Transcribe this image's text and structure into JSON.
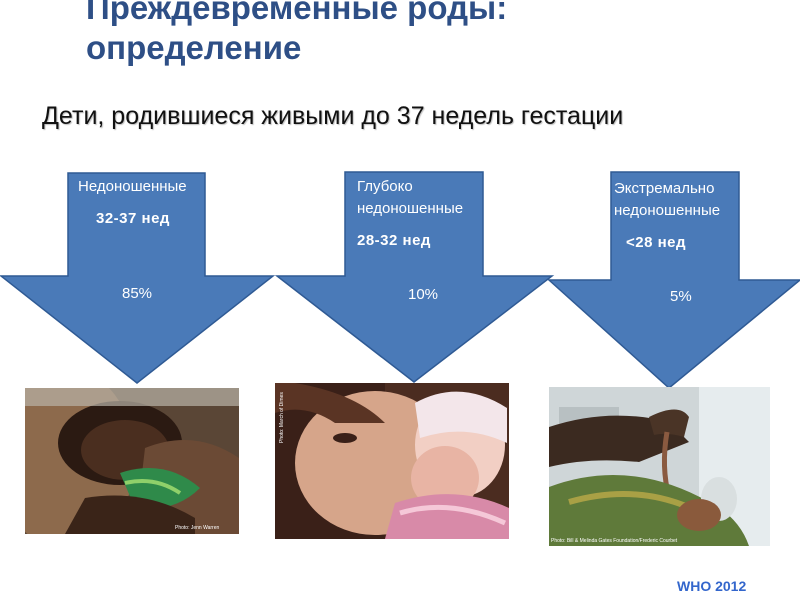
{
  "title": {
    "line1": "Преждевременные роды:",
    "line2": "определение"
  },
  "subtitle": "Дети, родившиеся живыми до 37 недель гестации",
  "colors": {
    "title": "#2e4f86",
    "arrow_fill": "#4a7ab8",
    "arrow_stroke": "#2f5a94",
    "source": "#3366cc"
  },
  "categories": [
    {
      "name": "Недоношенные",
      "range": "32-37 нед",
      "percent": "85%"
    },
    {
      "name_line1": "Глубоко",
      "name_line2": "недоношенные",
      "range": "28-32 нед",
      "percent": "10%"
    },
    {
      "name_line1": "Экстремально",
      "name_line2": "недоношенные",
      "range": "<28 нед",
      "percent": "5%"
    }
  ],
  "photos": [
    {
      "icon": "infant-photo",
      "credit": "Photo: Jenn Warren"
    },
    {
      "icon": "mother-and-infant-photo",
      "credit": "Photo: March of Dimes"
    },
    {
      "icon": "hand-holding-preterm-infant-photo",
      "credit": "Photo: Bill & Melinda Gates Foundation/Frederic Courbet"
    }
  ],
  "source": "WHO 2012"
}
